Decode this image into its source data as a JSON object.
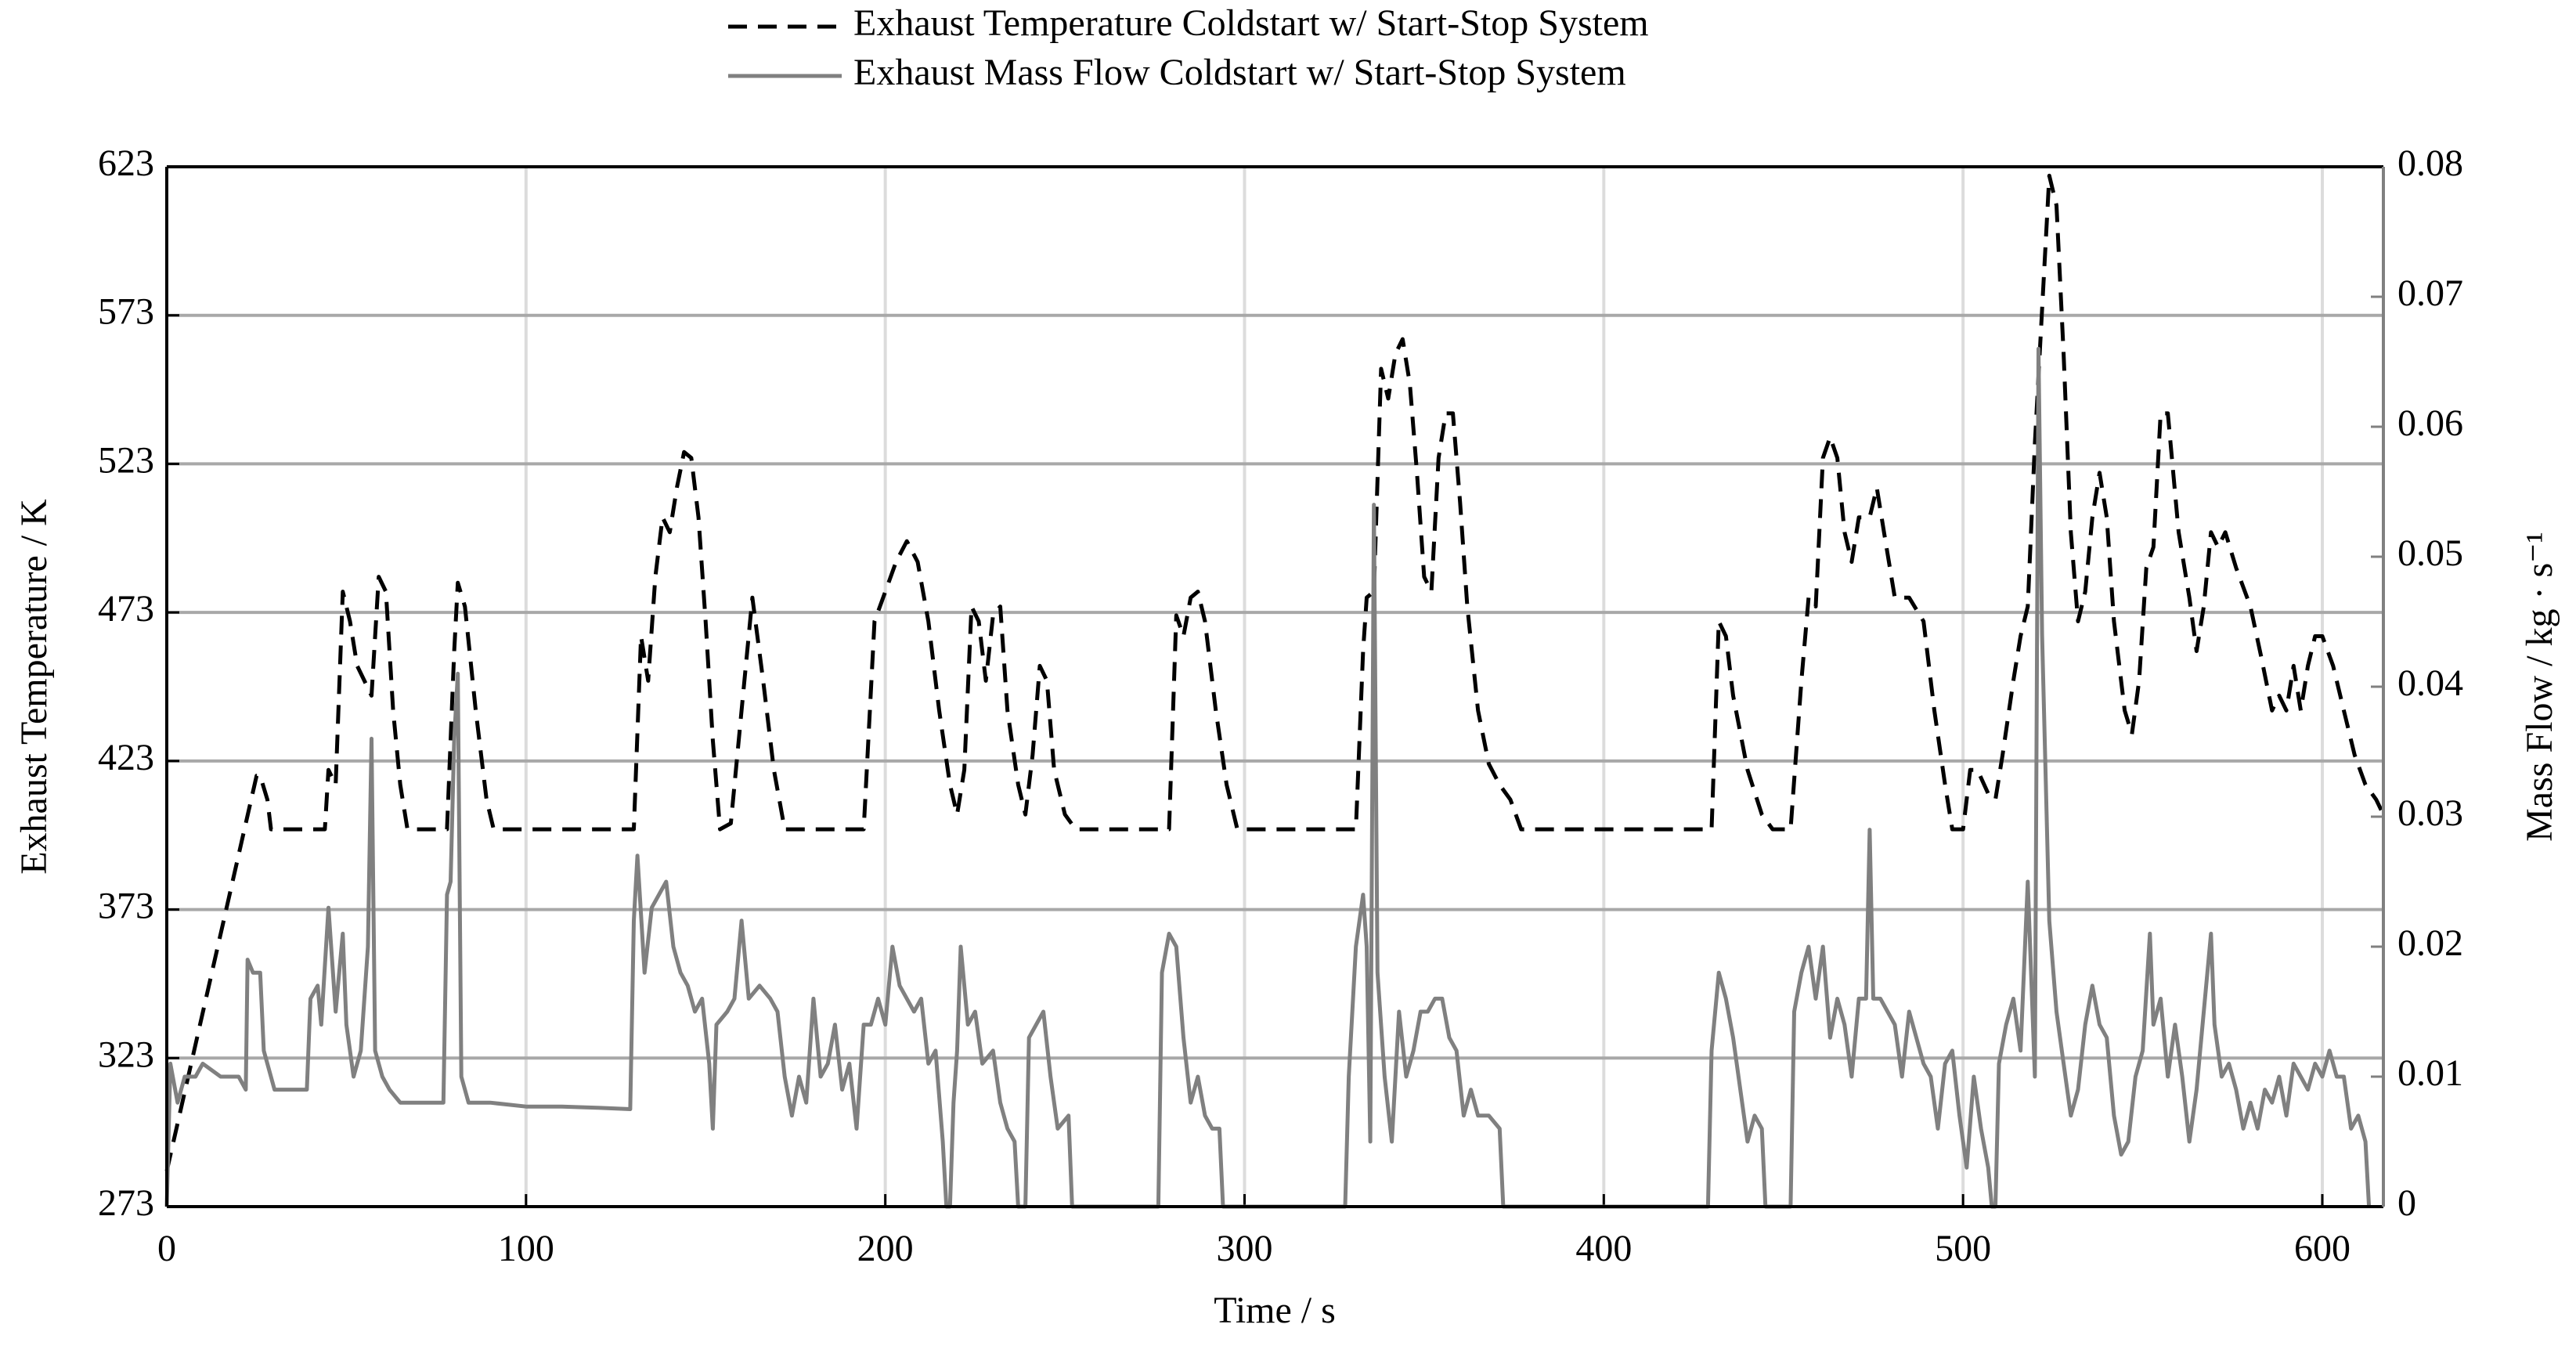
{
  "chart_data": {
    "type": "line",
    "xlabel": "Time / s",
    "ylabel": "Exhaust Temperature / K",
    "y2label": "Mass Flow / kg · s⁻¹",
    "xlim": [
      0,
      617
    ],
    "xticks": [
      0,
      100,
      200,
      300,
      400,
      500,
      600
    ],
    "ylim": [
      273,
      623
    ],
    "yticks": [
      273,
      323,
      373,
      423,
      473,
      523,
      573,
      623
    ],
    "y2lim": [
      0,
      0.08
    ],
    "y2ticks": [
      0,
      0.01,
      0.02,
      0.03,
      0.04,
      0.05,
      0.06,
      0.07,
      0.08
    ],
    "grid": true,
    "y2color": "#808080",
    "series": [
      {
        "name": "Exhaust Temperature Coldstart w/ Start-Stop System",
        "color": "#000000",
        "dashed": true,
        "x": [
          0,
          25,
          26,
          28,
          29,
          44,
          45,
          47,
          49,
          51,
          53,
          55,
          57,
          59,
          61,
          63,
          65,
          67,
          78,
          80,
          81,
          83,
          86,
          89,
          91,
          130,
          132,
          134,
          136,
          138,
          140,
          142,
          144,
          146,
          148,
          150,
          152,
          154,
          157,
          160,
          163,
          166,
          169,
          172,
          194,
          197,
          200,
          203,
          206,
          209,
          212,
          215,
          218,
          220,
          222,
          224,
          226,
          228,
          230,
          232,
          234,
          237,
          239,
          241,
          243,
          245,
          247,
          250,
          253,
          279,
          281,
          283,
          285,
          287,
          289,
          292,
          295,
          298,
          331,
          333,
          334,
          336,
          338,
          340,
          342,
          344,
          346,
          348,
          350,
          352,
          354,
          356,
          358,
          360,
          362,
          365,
          368,
          371,
          374,
          377,
          430,
          432,
          434,
          436,
          440,
          444,
          447,
          452,
          455,
          457,
          459,
          461,
          463,
          465,
          467,
          469,
          471,
          474,
          476,
          478,
          481,
          485,
          489,
          492,
          495,
          497,
          500,
          502,
          504,
          507,
          509,
          511,
          514,
          516,
          518,
          520,
          522,
          524,
          526,
          528,
          530,
          532,
          534,
          536,
          538,
          540,
          542,
          545,
          547,
          549,
          551,
          553,
          555,
          557,
          560,
          563,
          565,
          567,
          569,
          571,
          573,
          576,
          580,
          583,
          586,
          588,
          590,
          592,
          594,
          596,
          598,
          600,
          603,
          606,
          609,
          612,
          615,
          617
        ],
        "values": [
          285,
          418,
          418,
          410,
          400,
          400,
          420,
          415,
          480,
          470,
          455,
          450,
          445,
          485,
          480,
          440,
          415,
          400,
          400,
          460,
          483,
          475,
          440,
          410,
          400,
          400,
          465,
          450,
          485,
          505,
          500,
          515,
          527,
          525,
          505,
          470,
          430,
          400,
          402,
          440,
          478,
          450,
          420,
          400,
          400,
          470,
          480,
          490,
          497,
          490,
          470,
          440,
          415,
          405,
          420,
          475,
          470,
          450,
          472,
          475,
          440,
          415,
          405,
          425,
          455,
          450,
          420,
          405,
          400,
          400,
          472,
          465,
          478,
          480,
          470,
          440,
          415,
          400,
          400,
          460,
          478,
          480,
          555,
          545,
          560,
          565,
          550,
          520,
          485,
          480,
          525,
          540,
          540,
          510,
          475,
          440,
          422,
          415,
          410,
          400,
          400,
          470,
          465,
          445,
          420,
          405,
          400,
          400,
          450,
          478,
          475,
          525,
          532,
          525,
          500,
          490,
          505,
          505,
          515,
          500,
          478,
          478,
          470,
          440,
          415,
          400,
          400,
          420,
          420,
          412,
          410,
          425,
          450,
          465,
          475,
          530,
          575,
          620,
          610,
          560,
          500,
          470,
          480,
          505,
          520,
          505,
          470,
          440,
          432,
          450,
          488,
          495,
          540,
          540,
          500,
          478,
          460,
          475,
          500,
          495,
          500,
          488,
          475,
          458,
          440,
          445,
          440,
          455,
          440,
          455,
          465,
          465,
          455,
          440,
          425,
          415,
          410,
          405
        ]
      },
      {
        "name": "Exhaust Mass Flow Coldstart w/ Start-Stop System",
        "color": "#808080",
        "axis": "y2",
        "x": [
          0,
          1,
          3,
          5,
          8,
          10,
          15,
          20,
          22,
          22.5,
          24,
          26,
          27,
          30,
          35,
          39,
          40,
          42,
          43,
          45,
          47,
          48,
          49,
          50,
          52,
          54,
          56,
          57,
          58,
          60,
          62,
          65,
          70,
          77,
          78,
          79,
          80,
          81,
          82,
          84,
          90,
          100,
          110,
          120,
          129,
          130,
          131,
          133,
          135,
          137,
          139,
          141,
          143,
          145,
          147,
          149,
          151,
          152,
          153,
          156,
          158,
          160,
          162,
          165,
          168,
          170,
          172,
          174,
          176,
          178,
          180,
          182,
          184,
          186,
          188,
          190,
          192,
          194,
          196,
          198,
          200,
          202,
          204,
          206,
          208,
          210,
          212,
          214,
          216,
          217,
          218,
          219,
          220,
          221,
          223,
          225,
          227,
          230,
          232,
          234,
          236,
          237,
          239,
          240,
          242,
          244,
          246,
          248,
          251,
          252,
          276,
          277,
          279,
          281,
          283,
          285,
          287,
          289,
          291,
          293,
          294,
          328,
          329,
          331,
          333,
          334,
          335,
          336,
          337,
          339,
          341,
          343,
          345,
          347,
          349,
          351,
          353,
          355,
          357,
          359,
          361,
          363,
          365,
          368,
          371,
          372,
          429,
          430,
          432,
          434,
          436,
          438,
          440,
          442,
          444,
          445,
          452,
          453,
          455,
          457,
          459,
          461,
          463,
          465,
          467,
          469,
          471,
          473,
          474,
          475,
          477,
          479,
          481,
          483,
          485,
          487,
          489,
          491,
          493,
          495,
          497,
          499,
          501,
          503,
          505,
          507,
          508,
          509,
          510,
          512,
          514,
          516,
          518,
          520,
          521,
          522,
          524,
          526,
          528,
          530,
          532,
          534,
          536,
          538,
          540,
          542,
          544,
          546,
          548,
          550,
          552,
          553,
          555,
          557,
          559,
          561,
          563,
          565,
          567,
          569,
          570,
          572,
          574,
          576,
          578,
          580,
          582,
          584,
          586,
          588,
          590,
          592,
          594,
          596,
          598,
          600,
          602,
          604,
          606,
          608,
          610,
          612,
          613
        ],
        "values": [
          0,
          0.011,
          0.008,
          0.01,
          0.01,
          0.011,
          0.01,
          0.01,
          0.009,
          0.019,
          0.018,
          0.018,
          0.012,
          0.009,
          0.009,
          0.009,
          0.016,
          0.017,
          0.014,
          0.023,
          0.015,
          0.018,
          0.021,
          0.014,
          0.01,
          0.012,
          0.02,
          0.036,
          0.012,
          0.01,
          0.009,
          0.008,
          0.008,
          0.008,
          0.024,
          0.025,
          0.036,
          0.041,
          0.01,
          0.008,
          0.008,
          0.0077,
          0.0077,
          0.0076,
          0.0075,
          0.022,
          0.027,
          0.018,
          0.023,
          0.024,
          0.025,
          0.02,
          0.018,
          0.017,
          0.015,
          0.016,
          0.011,
          0.006,
          0.014,
          0.015,
          0.016,
          0.022,
          0.016,
          0.017,
          0.016,
          0.015,
          0.01,
          0.007,
          0.01,
          0.008,
          0.016,
          0.01,
          0.011,
          0.014,
          0.009,
          0.011,
          0.006,
          0.014,
          0.014,
          0.016,
          0.014,
          0.02,
          0.017,
          0.016,
          0.015,
          0.016,
          0.011,
          0.012,
          0.005,
          0,
          0,
          0.008,
          0.012,
          0.02,
          0.014,
          0.015,
          0.011,
          0.012,
          0.008,
          0.006,
          0.005,
          0,
          0,
          0.013,
          0.014,
          0.015,
          0.01,
          0.006,
          0.007,
          0,
          0,
          0.018,
          0.021,
          0.02,
          0.013,
          0.008,
          0.01,
          0.007,
          0.006,
          0.006,
          0,
          0,
          0.01,
          0.02,
          0.024,
          0.02,
          0.005,
          0.054,
          0.018,
          0.01,
          0.005,
          0.015,
          0.01,
          0.012,
          0.015,
          0.015,
          0.016,
          0.016,
          0.013,
          0.012,
          0.007,
          0.009,
          0.007,
          0.007,
          0.006,
          0,
          0,
          0.012,
          0.018,
          0.016,
          0.013,
          0.009,
          0.005,
          0.007,
          0.006,
          0,
          0,
          0.015,
          0.018,
          0.02,
          0.016,
          0.02,
          0.013,
          0.016,
          0.014,
          0.01,
          0.016,
          0.016,
          0.029,
          0.016,
          0.016,
          0.015,
          0.014,
          0.01,
          0.015,
          0.013,
          0.011,
          0.01,
          0.006,
          0.011,
          0.012,
          0.007,
          0.003,
          0.01,
          0.006,
          0.003,
          0,
          0,
          0.011,
          0.014,
          0.016,
          0.012,
          0.025,
          0.01,
          0.066,
          0.044,
          0.022,
          0.015,
          0.011,
          0.007,
          0.009,
          0.014,
          0.017,
          0.014,
          0.013,
          0.007,
          0.004,
          0.005,
          0.01,
          0.012,
          0.021,
          0.014,
          0.016,
          0.01,
          0.014,
          0.01,
          0.005,
          0.009,
          0.015,
          0.021,
          0.014,
          0.01,
          0.011,
          0.009,
          0.006,
          0.008,
          0.006,
          0.009,
          0.008,
          0.01,
          0.007,
          0.011,
          0.01,
          0.009,
          0.011,
          0.01,
          0.012,
          0.01,
          0.01,
          0.006,
          0.007,
          0.005,
          0
        ]
      }
    ]
  }
}
